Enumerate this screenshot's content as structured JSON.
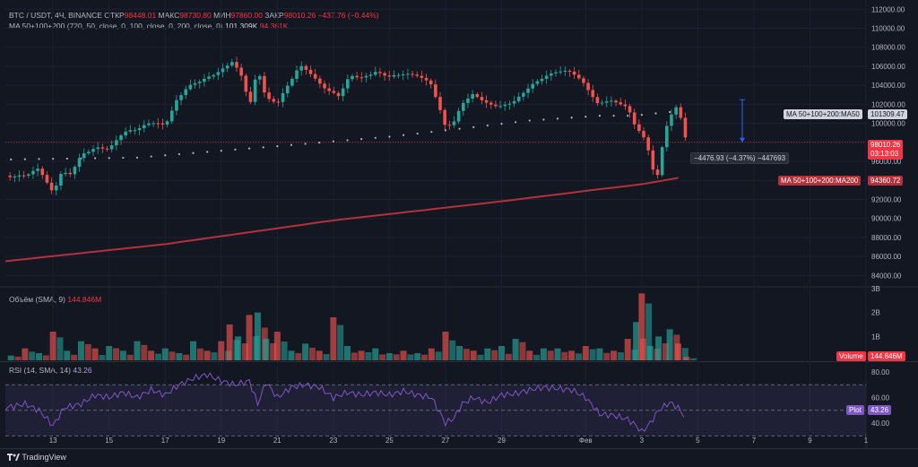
{
  "header": {
    "symbol": "BTC / USDT, 4Ч, BINANCE",
    "open_label": "ОТКР",
    "open_value": "98448.01",
    "high_label": "МАКС",
    "high_value": "98730.80",
    "low_label": "МИН",
    "low_value": "97860.00",
    "close_label": "ЗАКР",
    "close_value": "98010.26",
    "change": "−437.76 (−0.44%)"
  },
  "ma_legend": {
    "label": "MA 50+100+200 (720, 50, close, 0, 100, close, 0, 200, close, 0)",
    "value1": "101.309K",
    "value2": "94.361K"
  },
  "volume_legend": {
    "label": "Объём (SMA, 9)",
    "value": "144.846M"
  },
  "rsi_legend": {
    "label": "RSI (14, SMA, 14)",
    "value": "43.26"
  },
  "price_tags": {
    "current_price": "98010.26",
    "countdown": "03:13:03",
    "ma50_label": "MA 50+100+200:MA50",
    "ma50_value": "101309.47",
    "ma200_label": "MA 50+100+200:MA200",
    "ma200_value": "94360.72",
    "volume_tag": "Volume",
    "volume_value": "144.846M",
    "plot_tag": "Plot",
    "plot_value": "43.26"
  },
  "measure_label": "−4476.93 (−4.37%) −447693",
  "branding": "TradingView",
  "colors": {
    "up": "#26a69a",
    "down": "#ef5350",
    "ma200": "#b2313a",
    "rsi": "#7e57c2",
    "background": "#131722"
  },
  "chart_data": [
    {
      "type": "candlestick",
      "title": "BTC / USDT, 4Ч, BINANCE",
      "y_ticks": [
        "112000.00",
        "110000.00",
        "108000.00",
        "106000.00",
        "104000.00",
        "102000.00",
        "100000.00",
        "98000.00",
        "96000.00",
        "94000.00",
        "92000.00",
        "90000.00",
        "88000.00",
        "86000.00",
        "84000.00"
      ],
      "ylim": [
        83000,
        112500
      ],
      "x_ticks": [
        "13",
        "15",
        "17",
        "19",
        "21",
        "23",
        "25",
        "27",
        "29",
        "Фев",
        "3",
        "5",
        "7",
        "9",
        "1"
      ],
      "x_tick_days": [
        13,
        15,
        17,
        19,
        21,
        23,
        25,
        27,
        29,
        32,
        34,
        36,
        38,
        40,
        42
      ],
      "xlim": [
        11.3,
        42.0
      ],
      "close_series": {
        "days": [
          11.3,
          12.0,
          12.5,
          13.0,
          13.3,
          13.6,
          14.0,
          14.5,
          15.0,
          15.5,
          16.0,
          16.5,
          17.0,
          17.4,
          17.8,
          18.2,
          18.6,
          19.0,
          19.4,
          19.8,
          20.0,
          20.3,
          20.6,
          21.0,
          21.4,
          21.8,
          22.1,
          22.4,
          22.8,
          23.2,
          23.6,
          24.0,
          24.5,
          25.0,
          25.5,
          26.0,
          26.5,
          27.0,
          27.3,
          27.6,
          28.0,
          28.5,
          29.0,
          29.5,
          30.0,
          30.5,
          31.0,
          31.5,
          32.0,
          32.4,
          32.8,
          33.2,
          33.5,
          33.8,
          34.0,
          34.2,
          34.4,
          34.6,
          34.8,
          35.0,
          35.2,
          35.4,
          35.6
        ],
        "close": [
          94500,
          94600,
          95300,
          92600,
          94800,
          94500,
          96500,
          97300,
          97200,
          99000,
          99400,
          100200,
          99900,
          102500,
          104000,
          104500,
          105000,
          105600,
          106500,
          104500,
          101500,
          105700,
          102500,
          102000,
          104000,
          106000,
          105500,
          104500,
          103500,
          103000,
          105200,
          104900,
          105500,
          105000,
          105200,
          105000,
          104000,
          99500,
          100000,
          102000,
          103000,
          102000,
          101800,
          102500,
          104000,
          105000,
          105600,
          105500,
          104000,
          102000,
          102300,
          102000,
          101500,
          99400,
          98800,
          97500,
          95100,
          94300,
          99100,
          100500,
          101800,
          100600,
          98010
        ]
      },
      "ma50": {
        "days": [
          11.3,
          16.0,
          21.0,
          25.0,
          28.0,
          30.0,
          31.5,
          32.5,
          33.5,
          34.0,
          35.4
        ],
        "values": [
          96200,
          96400,
          97600,
          98600,
          99600,
          100300,
          100600,
          100800,
          100800,
          100900,
          101309.47
        ]
      },
      "ma200": {
        "days": [
          11.3,
          17.0,
          23.0,
          29.0,
          32.0,
          34.0,
          35.5
        ],
        "values": [
          85500,
          87300,
          89800,
          91800,
          92900,
          93600,
          94360.72
        ]
      },
      "current_price": 98010.26,
      "measurement": {
        "from": 102487.19,
        "to": 98010.26,
        "change": -4476.93
      }
    },
    {
      "type": "bar",
      "title": "Объём (SMA, 9)",
      "y_ticks": [
        "3B",
        "2B",
        "1B"
      ],
      "ylim": [
        0,
        3.0
      ],
      "days": [
        11.5,
        12.0,
        12.5,
        13.0,
        13.5,
        14.0,
        14.5,
        15.0,
        15.5,
        16.0,
        16.5,
        17.0,
        17.5,
        18.0,
        18.5,
        19.0,
        19.3,
        19.6,
        20.0,
        20.3,
        20.6,
        21.0,
        21.5,
        22.0,
        22.5,
        23.0,
        23.5,
        24.0,
        24.5,
        25.0,
        25.5,
        26.0,
        26.5,
        27.0,
        27.5,
        28.0,
        28.5,
        29.0,
        29.5,
        30.0,
        30.5,
        31.0,
        31.5,
        32.0,
        32.5,
        33.0,
        33.5,
        33.8,
        34.0,
        34.3,
        34.6,
        35.0,
        35.3,
        35.6
      ],
      "values": [
        0.2,
        0.5,
        0.3,
        1.2,
        0.4,
        0.8,
        0.5,
        0.6,
        0.4,
        0.8,
        0.4,
        0.5,
        0.3,
        0.8,
        0.4,
        0.8,
        1.5,
        1.0,
        1.9,
        2.0,
        0.9,
        1.2,
        0.4,
        0.7,
        0.4,
        1.8,
        0.6,
        0.4,
        0.5,
        0.3,
        0.4,
        0.3,
        0.5,
        1.2,
        0.6,
        0.4,
        0.5,
        0.6,
        0.9,
        0.4,
        0.5,
        0.5,
        0.4,
        0.6,
        0.5,
        0.4,
        0.9,
        1.6,
        2.8,
        0.6,
        1.0,
        1.3,
        0.7,
        0.144846
      ],
      "up": [
        true,
        false,
        true,
        false,
        true,
        true,
        false,
        true,
        true,
        true,
        false,
        true,
        true,
        true,
        false,
        false,
        false,
        true,
        false,
        true,
        true,
        false,
        true,
        true,
        false,
        false,
        true,
        false,
        true,
        true,
        false,
        true,
        false,
        false,
        true,
        false,
        true,
        true,
        true,
        false,
        true,
        true,
        false,
        false,
        true,
        false,
        false,
        true,
        false,
        true,
        true,
        true,
        false,
        false
      ]
    },
    {
      "type": "line",
      "title": "RSI (14, SMA, 14)",
      "y_ticks": [
        "80.00",
        "60.00",
        "40.00"
      ],
      "ylim": [
        33,
        87
      ],
      "bands": [
        70,
        50,
        30
      ],
      "days": [
        11.3,
        12.0,
        12.5,
        13.0,
        13.4,
        14.0,
        14.5,
        15.0,
        15.5,
        16.0,
        16.5,
        17.0,
        17.5,
        18.0,
        18.5,
        19.0,
        19.5,
        20.0,
        20.3,
        20.6,
        21.0,
        21.5,
        22.0,
        22.5,
        23.0,
        23.5,
        24.0,
        24.5,
        25.0,
        25.5,
        26.0,
        26.5,
        27.0,
        27.3,
        27.6,
        28.0,
        28.5,
        29.0,
        29.5,
        30.0,
        30.5,
        31.0,
        31.5,
        32.0,
        32.5,
        33.0,
        33.5,
        33.8,
        34.0,
        34.3,
        34.6,
        35.0,
        35.3,
        35.6
      ],
      "values": [
        52,
        55,
        50,
        38,
        52,
        55,
        62,
        60,
        64,
        60,
        66,
        62,
        70,
        75,
        78,
        73,
        70,
        73,
        55,
        72,
        60,
        68,
        70,
        68,
        60,
        64,
        62,
        64,
        62,
        65,
        62,
        60,
        40,
        44,
        55,
        60,
        56,
        62,
        63,
        66,
        68,
        67,
        66,
        60,
        47,
        46,
        43,
        38,
        33,
        40,
        50,
        56,
        52,
        43.26
      ]
    }
  ]
}
